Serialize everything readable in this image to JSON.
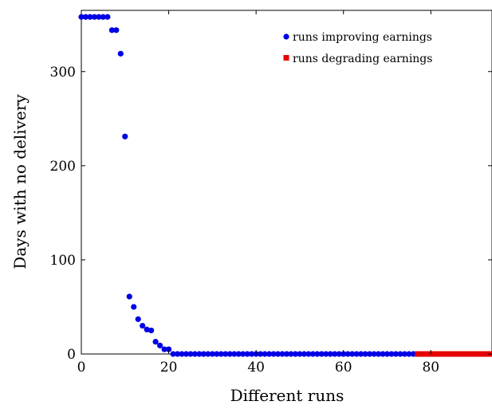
{
  "chart_data": {
    "type": "scatter",
    "xlabel": "Different runs",
    "ylabel": "Days with no delivery",
    "xlim": [
      0,
      94
    ],
    "ylim": [
      0,
      365
    ],
    "x_ticks": [
      0,
      20,
      40,
      60,
      80
    ],
    "y_ticks": [
      0,
      100,
      200,
      300
    ],
    "legend": {
      "position": "top-right"
    },
    "reference_line": {
      "y": 0,
      "style": "dashed"
    },
    "series": [
      {
        "name": "runs improving earnings",
        "color": "#0000e6",
        "marker": "circle",
        "x": [
          0,
          1,
          2,
          3,
          4,
          5,
          6,
          7,
          8,
          9,
          10,
          11,
          12,
          13,
          14,
          15,
          16,
          17,
          18,
          19,
          20,
          21,
          22,
          23,
          24,
          25,
          26,
          27,
          28,
          29,
          30,
          31,
          32,
          33,
          34,
          35,
          36,
          37,
          38,
          39,
          40,
          41,
          42,
          43,
          44,
          45,
          46,
          47,
          48,
          49,
          50,
          51,
          52,
          53,
          54,
          55,
          56,
          57,
          58,
          59,
          60,
          61,
          62,
          63,
          64,
          65,
          66,
          67,
          68,
          69,
          70,
          71,
          72,
          73,
          74,
          75,
          76
        ],
        "y": [
          358,
          358,
          358,
          358,
          358,
          358,
          358,
          344,
          344,
          319,
          231,
          61,
          50,
          37,
          30,
          26,
          25,
          13,
          9,
          5,
          5,
          0,
          0,
          0,
          0,
          0,
          0,
          0,
          0,
          0,
          0,
          0,
          0,
          0,
          0,
          0,
          0,
          0,
          0,
          0,
          0,
          0,
          0,
          0,
          0,
          0,
          0,
          0,
          0,
          0,
          0,
          0,
          0,
          0,
          0,
          0,
          0,
          0,
          0,
          0,
          0,
          0,
          0,
          0,
          0,
          0,
          0,
          0,
          0,
          0,
          0,
          0,
          0,
          0,
          0,
          0,
          0
        ]
      },
      {
        "name": "runs degrading earnings",
        "color": "#e60000",
        "marker": "square",
        "x": [
          77,
          78,
          79,
          80,
          81,
          82,
          83,
          84,
          85,
          86,
          87,
          88,
          89,
          90,
          91,
          92,
          93,
          94
        ],
        "y": [
          0,
          0,
          0,
          0,
          0,
          0,
          0,
          0,
          0,
          0,
          0,
          0,
          0,
          0,
          0,
          0,
          0,
          0
        ]
      }
    ]
  }
}
